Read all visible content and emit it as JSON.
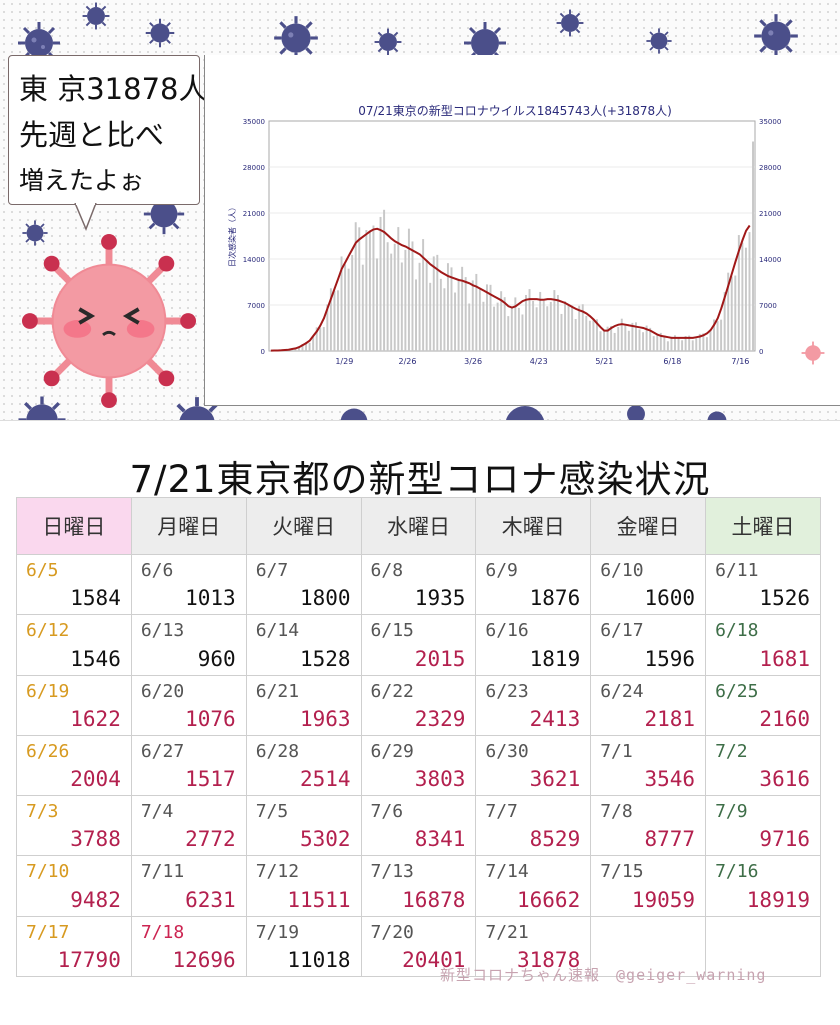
{
  "speech": {
    "line1": "東 京31878人",
    "line2": "先週と比べ",
    "line3": "増えたよぉ"
  },
  "chart_data": {
    "type": "bar",
    "title": "07/21東京の新型コロナウイルス1845743人(+31878人)",
    "ylabel": "日次感染者（人）",
    "ylim": [
      0,
      35000
    ],
    "yticks": [
      0,
      7000,
      14000,
      21000,
      28000,
      35000
    ],
    "xticks": [
      "1/29",
      "2/26",
      "3/26",
      "4/23",
      "5/21",
      "6/18",
      "7/16"
    ],
    "series": [
      {
        "values": [
          60,
          80,
          70,
          100,
          150,
          200,
          300,
          400,
          600,
          900,
          1200,
          1600,
          2300,
          3000,
          3900,
          5000,
          6500,
          8000,
          9500,
          11000,
          12500,
          13500,
          14500,
          15500,
          16500,
          17000,
          17400,
          17800,
          18200,
          18500,
          18600,
          18400,
          18100,
          17600,
          17100,
          16700,
          16400,
          16100,
          15900,
          15600,
          15300,
          15000,
          14700,
          14200,
          13700,
          13200,
          12800,
          12400,
          12000,
          11700,
          11400,
          11200,
          11000,
          10800,
          10700,
          10500,
          10300,
          10000,
          9800,
          9500,
          9200,
          8900,
          8600,
          8300,
          8000,
          7700,
          7300,
          6800,
          6600,
          6800,
          7200,
          7600,
          7800,
          7900,
          7900,
          7900,
          7800,
          7800,
          7900,
          7900,
          7800,
          7700,
          7500,
          7300,
          7000,
          6700,
          6400,
          6200,
          6000,
          5700,
          5300,
          4800,
          4200,
          3600,
          3100,
          3100,
          3500,
          3800,
          4000,
          4100,
          4000,
          3900,
          3800,
          3700,
          3600,
          3500,
          3300,
          3100,
          2800,
          2500,
          2300,
          2200,
          2100,
          2000,
          2000,
          2000,
          2000,
          2000,
          2000,
          2000,
          2100,
          2200,
          2400,
          2700,
          3200,
          4000,
          5000,
          6500,
          8200,
          10000,
          11800,
          13600,
          15300,
          16900,
          18300,
          19100,
          31878
        ]
      }
    ]
  },
  "table": {
    "title": "7/21東京都の新型コロナ感染状況",
    "headers": [
      "日曜日",
      "月曜日",
      "火曜日",
      "水曜日",
      "木曜日",
      "金曜日",
      "土曜日"
    ],
    "rows": [
      [
        [
          "6/5",
          "1584",
          "o",
          ""
        ],
        [
          "6/6",
          "1013",
          "",
          ""
        ],
        [
          "6/7",
          "1800",
          "",
          ""
        ],
        [
          "6/8",
          "1935",
          "",
          ""
        ],
        [
          "6/9",
          "1876",
          "",
          ""
        ],
        [
          "6/10",
          "1600",
          "",
          ""
        ],
        [
          "6/11",
          "1526",
          "",
          ""
        ]
      ],
      [
        [
          "6/12",
          "1546",
          "o",
          ""
        ],
        [
          "6/13",
          "960",
          "",
          ""
        ],
        [
          "6/14",
          "1528",
          "",
          ""
        ],
        [
          "6/15",
          "2015",
          "",
          "r"
        ],
        [
          "6/16",
          "1819",
          "",
          ""
        ],
        [
          "6/17",
          "1596",
          "",
          ""
        ],
        [
          "6/18",
          "1681",
          "g",
          "r"
        ]
      ],
      [
        [
          "6/19",
          "1622",
          "o",
          "r"
        ],
        [
          "6/20",
          "1076",
          "",
          "r"
        ],
        [
          "6/21",
          "1963",
          "",
          "r"
        ],
        [
          "6/22",
          "2329",
          "",
          "r"
        ],
        [
          "6/23",
          "2413",
          "",
          "r"
        ],
        [
          "6/24",
          "2181",
          "",
          "r"
        ],
        [
          "6/25",
          "2160",
          "g",
          "r"
        ]
      ],
      [
        [
          "6/26",
          "2004",
          "o",
          "r"
        ],
        [
          "6/27",
          "1517",
          "",
          "r"
        ],
        [
          "6/28",
          "2514",
          "",
          "r"
        ],
        [
          "6/29",
          "3803",
          "",
          "r"
        ],
        [
          "6/30",
          "3621",
          "",
          "r"
        ],
        [
          "7/1",
          "3546",
          "",
          "r"
        ],
        [
          "7/2",
          "3616",
          "g",
          "r"
        ]
      ],
      [
        [
          "7/3",
          "3788",
          "o",
          "r"
        ],
        [
          "7/4",
          "2772",
          "",
          "r"
        ],
        [
          "7/5",
          "5302",
          "",
          "r"
        ],
        [
          "7/6",
          "8341",
          "",
          "r"
        ],
        [
          "7/7",
          "8529",
          "",
          "r"
        ],
        [
          "7/8",
          "8777",
          "",
          "r"
        ],
        [
          "7/9",
          "9716",
          "g",
          "r"
        ]
      ],
      [
        [
          "7/10",
          "9482",
          "o",
          "r"
        ],
        [
          "7/11",
          "6231",
          "",
          "r"
        ],
        [
          "7/12",
          "11511",
          "",
          "r"
        ],
        [
          "7/13",
          "16878",
          "",
          "r"
        ],
        [
          "7/14",
          "16662",
          "",
          "r"
        ],
        [
          "7/15",
          "19059",
          "",
          "r"
        ],
        [
          "7/16",
          "18919",
          "g",
          "r"
        ]
      ],
      [
        [
          "7/17",
          "17790",
          "o",
          "r"
        ],
        [
          "7/18",
          "12696",
          "red",
          "r"
        ],
        [
          "7/19",
          "11018",
          "",
          ""
        ],
        [
          "7/20",
          "20401",
          "",
          "r"
        ],
        [
          "7/21",
          "31878",
          "",
          "r"
        ],
        [
          "",
          "",
          " ",
          ""
        ],
        [
          "",
          "",
          " ",
          ""
        ]
      ]
    ]
  },
  "footer": "新型コロナちゃん速報　@geiger_warning",
  "colors": {
    "accent": "#b3204e",
    "line": "#a01818",
    "bar": "#c8c8c8",
    "virus": "#4b4f8a",
    "mascot": "#f08a95"
  }
}
